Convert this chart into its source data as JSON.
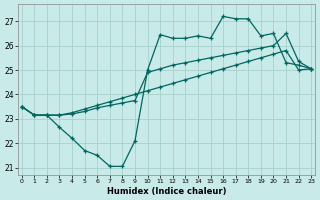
{
  "xlabel": "Humidex (Indice chaleur)",
  "bg_color": "#c8eae8",
  "grid_color": "#a0ccc8",
  "line_color": "#006660",
  "ylim": [
    20.7,
    27.7
  ],
  "xlim": [
    -0.3,
    23.3
  ],
  "yticks": [
    21,
    22,
    23,
    24,
    25,
    26,
    27
  ],
  "xticks": [
    0,
    1,
    2,
    3,
    4,
    5,
    6,
    7,
    8,
    9,
    10,
    11,
    12,
    13,
    14,
    15,
    16,
    17,
    18,
    19,
    20,
    21,
    22,
    23
  ],
  "curve1_x": [
    0,
    1,
    2,
    3,
    4,
    5,
    6,
    7,
    8,
    9,
    10,
    11,
    12,
    13,
    14,
    15,
    16,
    17,
    18,
    19,
    20,
    21,
    22,
    23
  ],
  "curve1_y": [
    23.5,
    23.15,
    23.15,
    22.65,
    22.2,
    21.7,
    21.5,
    21.05,
    21.05,
    22.1,
    25.0,
    26.45,
    26.3,
    26.3,
    26.4,
    26.3,
    27.2,
    27.1,
    27.1,
    26.4,
    26.5,
    25.3,
    25.2,
    25.05
  ],
  "curve2_x": [
    0,
    1,
    2,
    3,
    4,
    5,
    6,
    7,
    8,
    9,
    10,
    11,
    12,
    13,
    14,
    15,
    16,
    17,
    18,
    19,
    20,
    21,
    22,
    23
  ],
  "curve2_y": [
    23.5,
    23.15,
    23.15,
    23.15,
    23.2,
    23.3,
    23.45,
    23.55,
    23.65,
    23.75,
    24.9,
    25.05,
    25.2,
    25.3,
    25.4,
    25.5,
    25.6,
    25.7,
    25.8,
    25.9,
    26.0,
    26.5,
    25.35,
    25.05
  ],
  "curve3_x": [
    0,
    1,
    2,
    3,
    4,
    5,
    6,
    7,
    8,
    9,
    10,
    11,
    12,
    13,
    14,
    15,
    16,
    17,
    18,
    19,
    20,
    21,
    22,
    23
  ],
  "curve3_y": [
    23.5,
    23.15,
    23.15,
    23.15,
    23.25,
    23.4,
    23.55,
    23.7,
    23.85,
    24.0,
    24.15,
    24.3,
    24.45,
    24.6,
    24.75,
    24.9,
    25.05,
    25.2,
    25.35,
    25.5,
    25.65,
    25.8,
    25.0,
    25.05
  ]
}
